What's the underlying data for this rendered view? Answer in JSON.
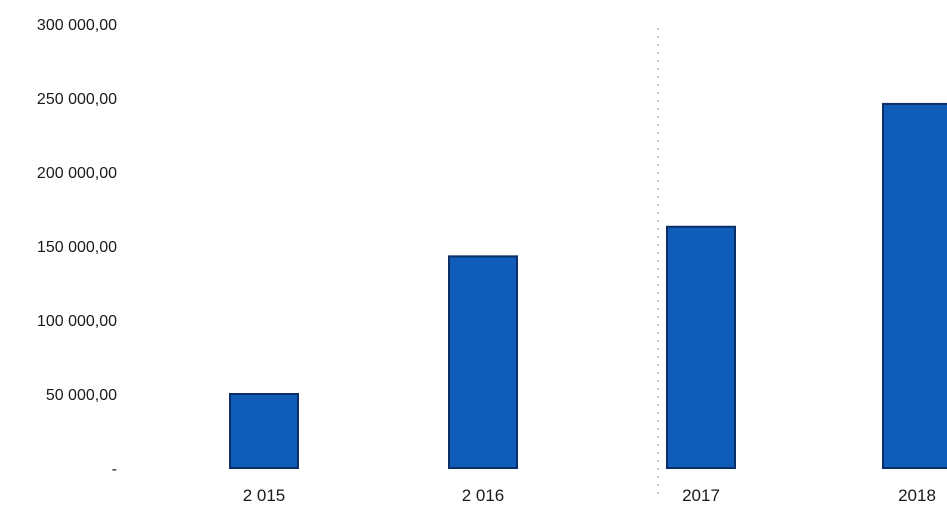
{
  "chart_data": {
    "type": "bar",
    "categories": [
      "2 015",
      "2 016",
      "2017",
      "2018"
    ],
    "values": [
      50000,
      143000,
      163000,
      246000
    ],
    "ylim": [
      0,
      300000
    ],
    "y_ticks": [
      {
        "value": 300000,
        "label": "300 000,00"
      },
      {
        "value": 250000,
        "label": "250 000,00"
      },
      {
        "value": 200000,
        "label": "200 000,00"
      },
      {
        "value": 150000,
        "label": "150 000,00"
      },
      {
        "value": 100000,
        "label": "100 000,00"
      },
      {
        "value": 50000,
        "label": "50 000,00"
      },
      {
        "value": 0,
        "label": "-"
      }
    ],
    "grid": false,
    "legend": "none",
    "bar_color": "#0F5DB8",
    "bar_edge_color": "#0B2F66",
    "separator_color": "#BDBDBD"
  }
}
